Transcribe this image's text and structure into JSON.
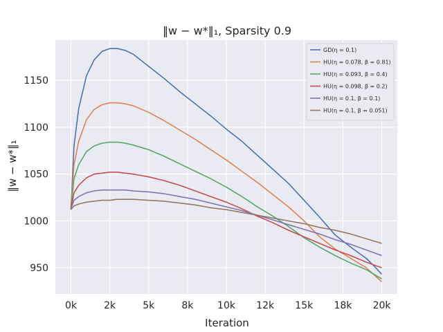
{
  "chart_data": {
    "type": "line",
    "title": "‖w − w*‖₁, Sparsity 0.9",
    "xlabel": "Iteration",
    "ylabel": "‖w − w*‖₁",
    "xlim": [
      -1000,
      21000
    ],
    "ylim": [
      922,
      1193
    ],
    "xticks": [
      {
        "value": 0,
        "label": "0k"
      },
      {
        "value": 2500,
        "label": "2k"
      },
      {
        "value": 5000,
        "label": "5k"
      },
      {
        "value": 7500,
        "label": "8k"
      },
      {
        "value": 10000,
        "label": "10k"
      },
      {
        "value": 12500,
        "label": "12k"
      },
      {
        "value": 15000,
        "label": "15k"
      },
      {
        "value": 17500,
        "label": "18k"
      },
      {
        "value": 20000,
        "label": "20k"
      }
    ],
    "yticks": [
      {
        "value": 950,
        "label": "950"
      },
      {
        "value": 1000,
        "label": "1000"
      },
      {
        "value": 1050,
        "label": "1050"
      },
      {
        "value": 1100,
        "label": "1100"
      },
      {
        "value": 1150,
        "label": "1150"
      }
    ],
    "grid": true,
    "legend_position": "top-right",
    "series": [
      {
        "name": "GD(η = 0.1)",
        "color": "#4c72b0",
        "x": [
          0,
          200,
          500,
          1000,
          1500,
          2000,
          2500,
          3000,
          3500,
          4000,
          5000,
          6000,
          7000,
          8000,
          9000,
          10000,
          11000,
          12000,
          13000,
          14000,
          15000,
          16000,
          17000,
          18000,
          19000,
          19500,
          20000
        ],
        "y": [
          1012,
          1080,
          1120,
          1155,
          1172,
          1181,
          1184,
          1184,
          1182,
          1178,
          1165,
          1152,
          1138,
          1125,
          1112,
          1098,
          1085,
          1070,
          1055,
          1040,
          1022,
          1004,
          985,
          972,
          960,
          952,
          943
        ]
      },
      {
        "name": "HU(η = 0.078, β = 0.81)",
        "color": "#dd8452",
        "x": [
          0,
          200,
          500,
          1000,
          1500,
          2000,
          2500,
          3000,
          3500,
          4000,
          5000,
          6000,
          7000,
          8000,
          9000,
          10000,
          11000,
          12000,
          13000,
          14000,
          15000,
          16000,
          17000,
          18000,
          19000,
          20000
        ],
        "y": [
          1015,
          1060,
          1085,
          1108,
          1119,
          1124,
          1126,
          1126,
          1125,
          1123,
          1116,
          1107,
          1097,
          1087,
          1076,
          1065,
          1053,
          1041,
          1028,
          1015,
          1000,
          983,
          970,
          960,
          950,
          935
        ]
      },
      {
        "name": "HU(η = 0.093, β = 0.4)",
        "color": "#55a868",
        "x": [
          0,
          200,
          500,
          1000,
          1500,
          2000,
          2500,
          3000,
          3500,
          4000,
          5000,
          6000,
          7000,
          8000,
          9000,
          10000,
          11000,
          12000,
          13000,
          14000,
          15000,
          16000,
          17000,
          18000,
          19000,
          20000
        ],
        "y": [
          1014,
          1045,
          1060,
          1074,
          1080,
          1083,
          1084,
          1084,
          1083,
          1081,
          1076,
          1069,
          1061,
          1053,
          1045,
          1036,
          1026,
          1015,
          1005,
          994,
          982,
          972,
          963,
          955,
          948,
          938
        ]
      },
      {
        "name": "HU(η = 0.098, β = 0.2)",
        "color": "#c44e52",
        "x": [
          0,
          200,
          500,
          1000,
          1500,
          2000,
          2500,
          3000,
          3500,
          4000,
          5000,
          6000,
          7000,
          8000,
          9000,
          10000,
          11000,
          12000,
          13000,
          14000,
          15000,
          16000,
          17000,
          18000,
          19000,
          20000
        ],
        "y": [
          1013,
          1030,
          1038,
          1046,
          1050,
          1051,
          1052,
          1052,
          1051,
          1050,
          1047,
          1043,
          1038,
          1032,
          1026,
          1020,
          1013,
          1005,
          998,
          990,
          983,
          976,
          969,
          963,
          956,
          950
        ]
      },
      {
        "name": "HU(η = 0.1, β = 0.1)",
        "color": "#8172b3",
        "x": [
          0,
          200,
          500,
          1000,
          1500,
          2000,
          2500,
          3000,
          3500,
          4000,
          5000,
          6000,
          7000,
          8000,
          9000,
          10000,
          11000,
          12000,
          13000,
          14000,
          15000,
          16000,
          17000,
          18000,
          19000,
          20000
        ],
        "y": [
          1013,
          1022,
          1026,
          1030,
          1032,
          1033,
          1033,
          1033,
          1033,
          1032,
          1031,
          1029,
          1026,
          1023,
          1019,
          1015,
          1011,
          1006,
          1001,
          996,
          991,
          986,
          980,
          975,
          969,
          963
        ]
      },
      {
        "name": "HU(η = 0.1, β = 0.051)",
        "color": "#937860",
        "x": [
          0,
          200,
          500,
          1000,
          1500,
          2000,
          2500,
          3000,
          3500,
          4000,
          5000,
          6000,
          7000,
          8000,
          9000,
          10000,
          11000,
          12000,
          13000,
          14000,
          15000,
          16000,
          17000,
          18000,
          19000,
          20000
        ],
        "y": [
          1012,
          1016,
          1018,
          1020,
          1021,
          1022,
          1022,
          1023,
          1023,
          1023,
          1022,
          1021,
          1019,
          1017,
          1014,
          1012,
          1009,
          1006,
          1003,
          1000,
          997,
          993,
          990,
          986,
          981,
          976
        ]
      }
    ]
  },
  "style": {
    "plot_background": "#eaeaf2",
    "grid_color": "#ffffff",
    "text_color": "#262626"
  }
}
